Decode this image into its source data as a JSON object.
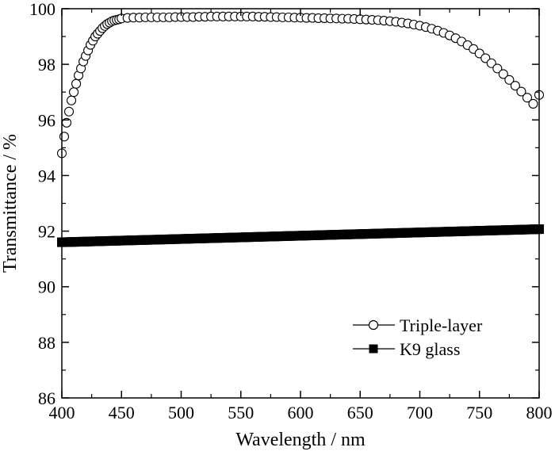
{
  "chart_data": {
    "type": "scatter",
    "xlabel": "Wavelength / nm",
    "ylabel": "Transmittance / %",
    "xlim": [
      400,
      800
    ],
    "ylim": [
      86,
      100
    ],
    "xticks": [
      400,
      450,
      500,
      550,
      600,
      650,
      700,
      750,
      800
    ],
    "yticks": [
      86,
      88,
      90,
      92,
      94,
      96,
      98,
      100
    ],
    "grid": false,
    "legend_position": "bottom-right",
    "series": [
      {
        "name": "Triple-layer",
        "marker": "open-circle",
        "color": "#000000",
        "x": [
          400,
          402,
          404,
          406,
          408,
          410,
          412,
          414,
          416,
          418,
          420,
          422,
          424,
          426,
          428,
          430,
          432,
          434,
          436,
          438,
          440,
          442,
          444,
          446,
          448,
          450,
          455,
          460,
          465,
          470,
          475,
          480,
          485,
          490,
          495,
          500,
          505,
          510,
          515,
          520,
          525,
          530,
          535,
          540,
          545,
          550,
          555,
          560,
          565,
          570,
          575,
          580,
          585,
          590,
          595,
          600,
          605,
          610,
          615,
          620,
          625,
          630,
          635,
          640,
          645,
          650,
          655,
          660,
          665,
          670,
          675,
          680,
          685,
          690,
          695,
          700,
          705,
          710,
          715,
          720,
          725,
          730,
          735,
          740,
          745,
          750,
          755,
          760,
          765,
          770,
          775,
          780,
          785,
          790,
          795,
          800
        ],
        "y": [
          94.8,
          95.4,
          95.9,
          96.3,
          96.7,
          97.0,
          97.3,
          97.6,
          97.85,
          98.1,
          98.3,
          98.5,
          98.7,
          98.85,
          99.0,
          99.1,
          99.2,
          99.3,
          99.38,
          99.45,
          99.5,
          99.55,
          99.58,
          99.6,
          99.62,
          99.65,
          99.67,
          99.68,
          99.68,
          99.69,
          99.69,
          99.69,
          99.69,
          99.69,
          99.7,
          99.7,
          99.7,
          99.7,
          99.71,
          99.71,
          99.72,
          99.72,
          99.72,
          99.72,
          99.72,
          99.72,
          99.72,
          99.72,
          99.71,
          99.71,
          99.7,
          99.7,
          99.69,
          99.69,
          99.68,
          99.68,
          99.67,
          99.67,
          99.66,
          99.66,
          99.65,
          99.65,
          99.64,
          99.64,
          99.63,
          99.62,
          99.61,
          99.6,
          99.59,
          99.57,
          99.55,
          99.53,
          99.5,
          99.47,
          99.43,
          99.39,
          99.34,
          99.28,
          99.21,
          99.13,
          99.04,
          98.94,
          98.82,
          98.69,
          98.55,
          98.39,
          98.22,
          98.04,
          97.85,
          97.65,
          97.44,
          97.23,
          97.02,
          96.8,
          96.58,
          96.9
        ]
      },
      {
        "name": "K9 glass",
        "marker": "filled-square",
        "color": "#000000",
        "x_start": 400,
        "x_end": 800,
        "x_step": 2,
        "y_start": 91.6,
        "y_end": 92.07
      }
    ]
  }
}
